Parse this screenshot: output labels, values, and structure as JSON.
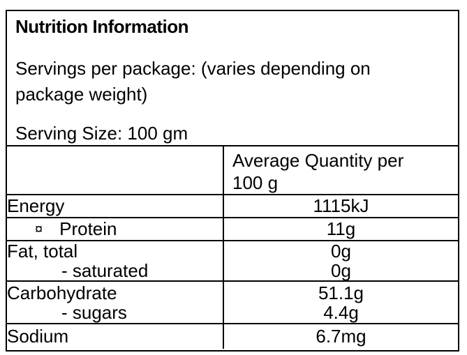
{
  "label": {
    "title": "Nutrition Information",
    "servings_line1": "Servings per package: (varies depending on",
    "servings_line2": "package weight)",
    "serving_size": "Serving Size: 100 gm"
  },
  "table": {
    "header": {
      "quantity_line1": "Average Quantity per",
      "quantity_line2": "100 g"
    },
    "rows": [
      {
        "label": "Energy",
        "value": "1115kJ"
      },
      {
        "bullet": "¤",
        "label": "Protein",
        "value": "11g"
      },
      {
        "label_line1": "Fat, total",
        "label_line2": "- saturated",
        "value_line1": "0g",
        "value_line2": "0g"
      },
      {
        "label_line1": "Carbohydrate",
        "label_line2": "- sugars",
        "value_line1": "51.1g",
        "value_line2": "4.4g"
      },
      {
        "label": "Sodium",
        "value": "6.7mg"
      }
    ]
  },
  "colors": {
    "background": "#ffffff",
    "border": "#000000",
    "text": "#000000"
  }
}
